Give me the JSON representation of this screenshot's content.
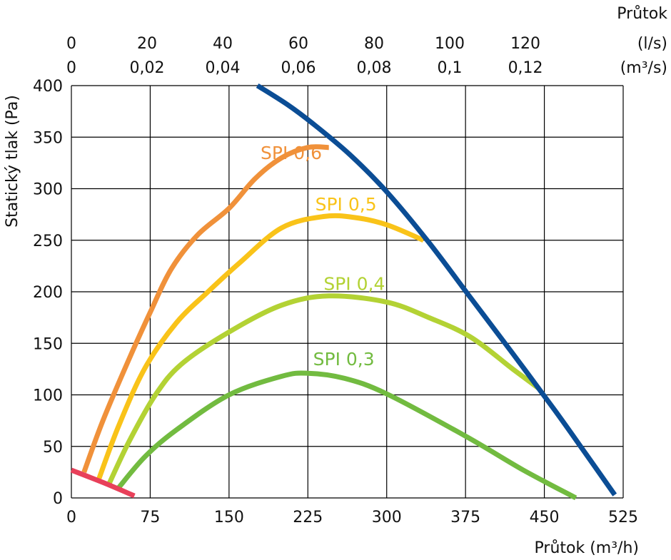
{
  "chart_data": {
    "type": "line",
    "xlabel_bottom": "Průtok (m³/h)",
    "xlabel_top": "Průtok",
    "top_unit_ls": "(l/s)",
    "top_unit_m3s": "(m³/s)",
    "ylabel": "Statický tlak (Pa)",
    "xlim": [
      0,
      525
    ],
    "ylim": [
      0,
      400
    ],
    "grid": true,
    "x_ticks": [
      "0",
      "75",
      "150",
      "225",
      "300",
      "375",
      "450",
      "525"
    ],
    "y_ticks": [
      "0",
      "50",
      "100",
      "150",
      "200",
      "250",
      "300",
      "350",
      "400"
    ],
    "top_ticks_ls": [
      {
        "label": "0",
        "value_m3h": 0
      },
      {
        "label": "20",
        "value_m3h": 72
      },
      {
        "label": "40",
        "value_m3h": 144
      },
      {
        "label": "60",
        "value_m3h": 216
      },
      {
        "label": "80",
        "value_m3h": 288
      },
      {
        "label": "100",
        "value_m3h": 360
      },
      {
        "label": "120",
        "value_m3h": 432
      }
    ],
    "top_ticks_m3s": [
      {
        "label": "0",
        "value_m3h": 0
      },
      {
        "label": "0,02",
        "value_m3h": 72
      },
      {
        "label": "0,04",
        "value_m3h": 144
      },
      {
        "label": "0,06",
        "value_m3h": 216
      },
      {
        "label": "0,08",
        "value_m3h": 288
      },
      {
        "label": "0,1",
        "value_m3h": 360
      },
      {
        "label": "0,12",
        "value_m3h": 432
      }
    ],
    "series": [
      {
        "id": "max-curve",
        "color": "#0b4d95",
        "points": [
          [
            177,
            400
          ],
          [
            205,
            382
          ],
          [
            230,
            363
          ],
          [
            265,
            333
          ],
          [
            300,
            297
          ],
          [
            340,
            248
          ],
          [
            380,
            194
          ],
          [
            420,
            140
          ],
          [
            460,
            85
          ],
          [
            490,
            42
          ],
          [
            517,
            3
          ]
        ]
      },
      {
        "id": "min-curve",
        "color": "#e8405a",
        "points": [
          [
            0,
            27
          ],
          [
            30,
            15
          ],
          [
            60,
            2
          ]
        ]
      },
      {
        "name": "SPI 0,6",
        "color": "#f0913a",
        "label_pos": [
          180,
          335
        ],
        "points": [
          [
            12,
            25
          ],
          [
            30,
            75
          ],
          [
            55,
            135
          ],
          [
            75,
            180
          ],
          [
            95,
            222
          ],
          [
            120,
            255
          ],
          [
            150,
            281
          ],
          [
            175,
            310
          ],
          [
            200,
            330
          ],
          [
            225,
            340
          ],
          [
            245,
            340
          ]
        ]
      },
      {
        "name": "SPI 0,5",
        "color": "#f9c319",
        "label_pos": [
          232,
          285
        ],
        "points": [
          [
            26,
            18
          ],
          [
            45,
            70
          ],
          [
            70,
            126
          ],
          [
            100,
            170
          ],
          [
            130,
            200
          ],
          [
            160,
            228
          ],
          [
            200,
            262
          ],
          [
            240,
            273
          ],
          [
            270,
            272
          ],
          [
            300,
            265
          ],
          [
            335,
            250
          ]
        ]
      },
      {
        "name": "SPI 0,4",
        "color": "#b3d234",
        "label_pos": [
          240,
          208
        ],
        "points": [
          [
            36,
            14
          ],
          [
            55,
            55
          ],
          [
            80,
            100
          ],
          [
            105,
            130
          ],
          [
            150,
            161
          ],
          [
            200,
            187
          ],
          [
            245,
            196
          ],
          [
            300,
            190
          ],
          [
            340,
            175
          ],
          [
            380,
            156
          ],
          [
            420,
            125
          ],
          [
            445,
            106
          ]
        ]
      },
      {
        "name": "SPI 0,3",
        "color": "#72bb40",
        "label_pos": [
          230,
          135
        ],
        "points": [
          [
            45,
            10
          ],
          [
            70,
            40
          ],
          [
            100,
            66
          ],
          [
            150,
            100
          ],
          [
            200,
            118
          ],
          [
            225,
            121
          ],
          [
            260,
            116
          ],
          [
            300,
            101
          ],
          [
            375,
            60
          ],
          [
            430,
            27
          ],
          [
            480,
            0
          ]
        ]
      }
    ]
  }
}
